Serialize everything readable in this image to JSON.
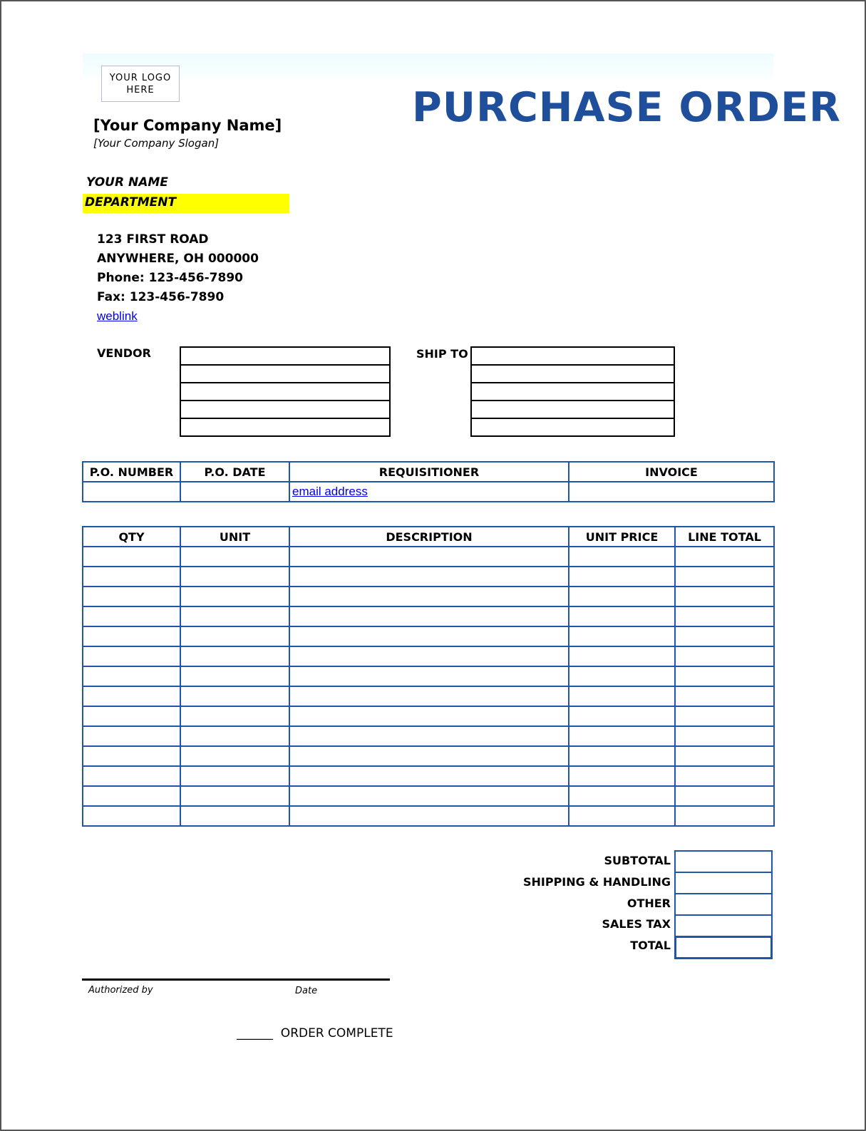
{
  "header": {
    "logo_text_line1": "YOUR LOGO",
    "logo_text_line2": "HERE",
    "title": "PURCHASE ORDER",
    "company_name": "[Your Company Name]",
    "company_slogan": "[Your Company Slogan]",
    "your_name": "YOUR NAME",
    "department": "DEPARTMENT",
    "address_line1": "123 FIRST ROAD",
    "address_line2": "ANYWHERE, OH 000000",
    "phone": "Phone: 123-456-7890",
    "fax": "Fax: 123-456-7890",
    "weblink": "weblink"
  },
  "vendor_label": "VENDOR",
  "ship_to_label": "SHIP TO",
  "po_table": {
    "headers": [
      "P.O. NUMBER",
      "P.O. DATE",
      "REQUISITIONER",
      "INVOICE"
    ],
    "requisitioner_value": "email address"
  },
  "items_table": {
    "headers": [
      "QTY",
      "UNIT",
      "DESCRIPTION",
      "UNIT PRICE",
      "LINE TOTAL"
    ]
  },
  "totals": {
    "subtotal": "SUBTOTAL",
    "shipping": "SHIPPING & HANDLING",
    "other": "OTHER",
    "sales_tax": "SALES TAX",
    "total": "TOTAL"
  },
  "footer": {
    "authorized_by": "Authorized by",
    "date": "Date",
    "order_complete": "______  ORDER COMPLETE"
  },
  "colors": {
    "title": "#1f4e9b",
    "table_border": "#1f56a8",
    "department_highlight": "#ffff00",
    "link": "#0000ee"
  }
}
